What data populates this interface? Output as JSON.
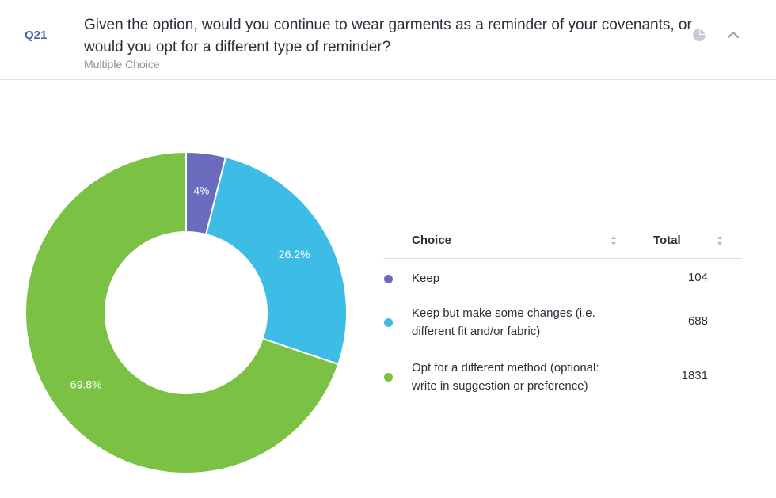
{
  "question": {
    "number": "Q21",
    "text": "Given the option, would you continue to wear garments as a reminder of your covenants, or would you opt for a different type of reminder?",
    "type": "Multiple Choice"
  },
  "icons": {
    "chart_toggle": "pie-chart-icon",
    "collapse": "chevron-up-icon"
  },
  "table": {
    "headers": {
      "choice": "Choice",
      "total": "Total"
    }
  },
  "chart_data": {
    "type": "pie",
    "donut": true,
    "labels": [
      "Keep",
      "Keep but make some changes (i.e. different fit and/or fabric)",
      "Opt for a different method (optional: write in suggestion or preference)"
    ],
    "values": [
      104,
      688,
      1831
    ],
    "percent_labels": [
      "4%",
      "26.2%",
      "69.8%"
    ],
    "colors": [
      "#6b6bbd",
      "#3dbde6",
      "#7bc244"
    ]
  }
}
